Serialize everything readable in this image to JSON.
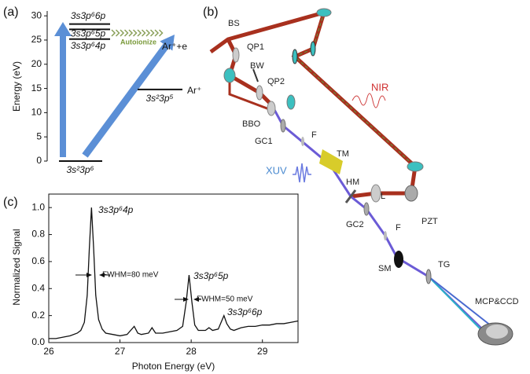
{
  "chart_data": [
    {
      "type": "level-diagram",
      "panel": "(a)",
      "ylabel": "Energy (eV)",
      "ylim": [
        0,
        31
      ],
      "yticks": [
        0,
        5,
        10,
        15,
        20,
        25,
        30
      ],
      "levels": [
        {
          "name": "3s²3p⁶",
          "energy": 0
        },
        {
          "name": "3s²3p⁵",
          "energy": 14.8
        },
        {
          "name": "3s3p⁶4p",
          "energy": 25.2
        },
        {
          "name": "3s3p⁶5p",
          "energy": 27.2
        },
        {
          "name": "3s3p⁶6p",
          "energy": 28.3
        }
      ],
      "annotations": [
        "Ar⁺",
        "Ar⁺+e",
        "Autoionize"
      ]
    },
    {
      "type": "line",
      "panel": "(c)",
      "xlabel": "Photon Energy (eV)",
      "ylabel": "Normalized Signal",
      "color": "#111111",
      "x": [
        26.0,
        26.1,
        26.2,
        26.3,
        26.4,
        26.45,
        26.5,
        26.54,
        26.57,
        26.6,
        26.63,
        26.66,
        26.7,
        26.75,
        26.8,
        26.9,
        27.0,
        27.1,
        27.2,
        27.25,
        27.3,
        27.4,
        27.45,
        27.5,
        27.6,
        27.7,
        27.8,
        27.88,
        27.93,
        27.97,
        28.01,
        28.05,
        28.1,
        28.2,
        28.25,
        28.3,
        28.38,
        28.42,
        28.46,
        28.5,
        28.55,
        28.6,
        28.7,
        28.8,
        28.9,
        29.0,
        29.1,
        29.2,
        29.3,
        29.4,
        29.5
      ],
      "values": [
        0.03,
        0.03,
        0.04,
        0.05,
        0.07,
        0.09,
        0.15,
        0.35,
        0.7,
        1.0,
        0.7,
        0.35,
        0.17,
        0.1,
        0.07,
        0.06,
        0.05,
        0.06,
        0.12,
        0.07,
        0.06,
        0.07,
        0.11,
        0.07,
        0.07,
        0.08,
        0.09,
        0.12,
        0.3,
        0.5,
        0.3,
        0.13,
        0.09,
        0.09,
        0.11,
        0.09,
        0.1,
        0.15,
        0.2,
        0.14,
        0.1,
        0.09,
        0.11,
        0.12,
        0.12,
        0.13,
        0.13,
        0.14,
        0.14,
        0.15,
        0.16
      ],
      "xlim": [
        26,
        29.5
      ],
      "xticks": [
        26,
        27,
        28,
        29
      ],
      "ylim": [
        0,
        1.1
      ],
      "yticks": [
        {
          "value": 0,
          "label": "0.0"
        },
        0.2,
        0.4,
        0.6,
        0.8,
        {
          "value": 1,
          "label": "1.0"
        }
      ],
      "annotations": [
        "3s3p⁶4p",
        "FWHM=80 meV",
        "3s3p⁶5p",
        "FWHM=50 meV",
        "3s3p⁶6p"
      ]
    }
  ],
  "setup": {
    "panel": "(b)",
    "labels": [
      "BS",
      "QP1",
      "BW",
      "QP2",
      "BBO",
      "GC1",
      "F",
      "TM",
      "XUV",
      "HM",
      "L",
      "NIR",
      "PZT",
      "GC2",
      "F",
      "SM",
      "TG",
      "MCP&CCD"
    ]
  }
}
